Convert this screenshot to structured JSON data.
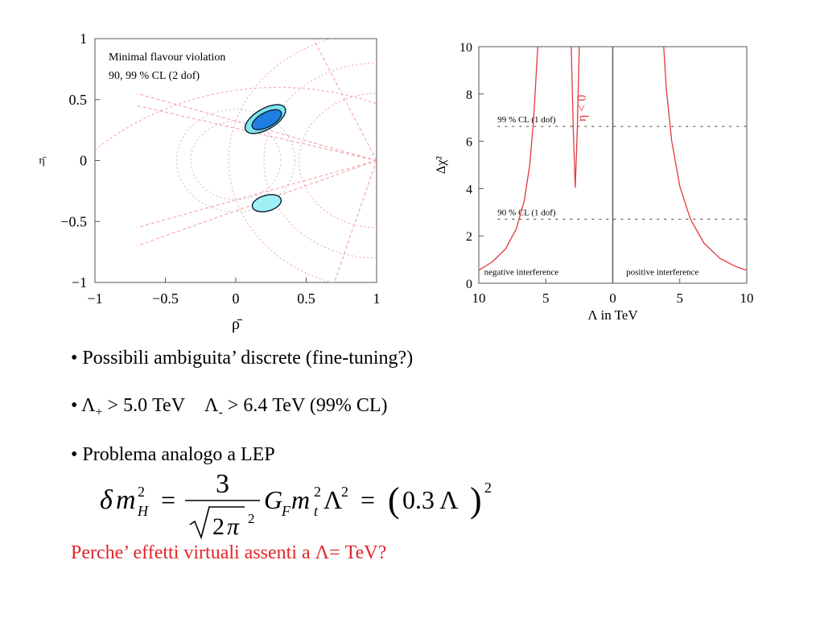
{
  "chart_data": [
    {
      "type": "scatter",
      "title": "Minimal flavour violation",
      "subtitle": "90,  99 % CL (2 dof)",
      "xlabel": "ρ̄",
      "ylabel": "η̄",
      "xlim": [
        -1,
        1
      ],
      "ylim": [
        -1,
        1
      ],
      "xticks": [
        -1,
        -0.5,
        0,
        0.5,
        1
      ],
      "xtick_labels": [
        "−1",
        "−0.5",
        "0",
        "0.5",
        "1"
      ],
      "yticks": [
        -1,
        -0.5,
        0,
        0.5,
        1
      ],
      "ytick_labels": [
        "−1",
        "−0.5",
        "0",
        "0.5",
        "1"
      ],
      "regions": [
        {
          "name": "upper 99% CL",
          "cx": 0.21,
          "cy": 0.34,
          "rx": 0.16,
          "ry": 0.085,
          "angle_deg": -30,
          "color": "#7fe6ec"
        },
        {
          "name": "upper 90% CL",
          "cx": 0.22,
          "cy": 0.335,
          "rx": 0.115,
          "ry": 0.06,
          "angle_deg": -28,
          "color": "#1f7fe0"
        },
        {
          "name": "lower 99% CL",
          "cx": 0.22,
          "cy": -0.35,
          "rx": 0.105,
          "ry": 0.065,
          "angle_deg": -15,
          "color": "#9ff0f4"
        }
      ]
    },
    {
      "type": "line",
      "xlabel": "Λ in TeV",
      "ylabel": "Δχ²",
      "xlim": [
        -10,
        10
      ],
      "ylim": [
        0,
        10
      ],
      "xticks": [
        -10,
        -5,
        0,
        5,
        10
      ],
      "xtick_labels": [
        "10",
        "5",
        "0",
        "5",
        "10"
      ],
      "yticks": [
        0,
        2,
        4,
        6,
        8,
        10
      ],
      "ytick_labels": [
        "0",
        "2",
        "4",
        "6",
        "8",
        "10"
      ],
      "curve_color": "#e2383d",
      "series": [
        {
          "name": "negative interference",
          "x": [
            -10,
            -9,
            -8,
            -7.2,
            -6.6,
            -6.2,
            -5.9,
            -5.7,
            -5.6
          ],
          "y": [
            0.55,
            0.9,
            1.45,
            2.3,
            3.5,
            5.0,
            7.0,
            9.0,
            10
          ]
        },
        {
          "name": "η < 0 dip",
          "x": [
            -3.1,
            -2.95,
            -2.8,
            -2.65,
            -2.5
          ],
          "y": [
            10,
            6.5,
            4.05,
            6.5,
            10
          ]
        },
        {
          "name": "positive interference",
          "x": [
            3.8,
            4.0,
            4.4,
            5.0,
            5.8,
            6.8,
            8.0,
            9.2,
            10
          ],
          "y": [
            10,
            8.2,
            6.0,
            4.1,
            2.7,
            1.7,
            1.05,
            0.7,
            0.55
          ]
        }
      ],
      "reference_lines": [
        {
          "label": "99 % CL (1 dof)",
          "y": 6.63
        },
        {
          "label": "90 % CL (1 dof)",
          "y": 2.71
        }
      ],
      "annotations": [
        "η < 0",
        "negative interference",
        "positive interference"
      ]
    }
  ],
  "bullets": [
    {
      "bullet": "•",
      "text": "Possibili ambiguita’ discrete (fine-tuning?)"
    },
    {
      "bullet": "•",
      "lambda": "Λ",
      "sub_plus": "+",
      "text_a": " > 5.0 TeV",
      "sub_minus": "-",
      "text_b": " > 6.4 TeV  (99% CL)"
    },
    {
      "bullet": "•",
      "text": "Problema analogo a LEP"
    }
  ],
  "formula": {
    "delta": "δ",
    "m": "m",
    "sub_H": "H",
    "sq": "2",
    "equals": "=",
    "numerator": "3",
    "root_arg": "2",
    "pi": "π",
    "G": "G",
    "sub_F": "F",
    "sub_t": "t",
    "Lambda": "Λ",
    "paren_open": "(",
    "inner": "0.3 Λ",
    "paren_close": ")"
  },
  "question": {
    "text": "Perche’ effetti virtuali assenti a ",
    "lambda": "Λ",
    "rest": "= TeV?"
  }
}
